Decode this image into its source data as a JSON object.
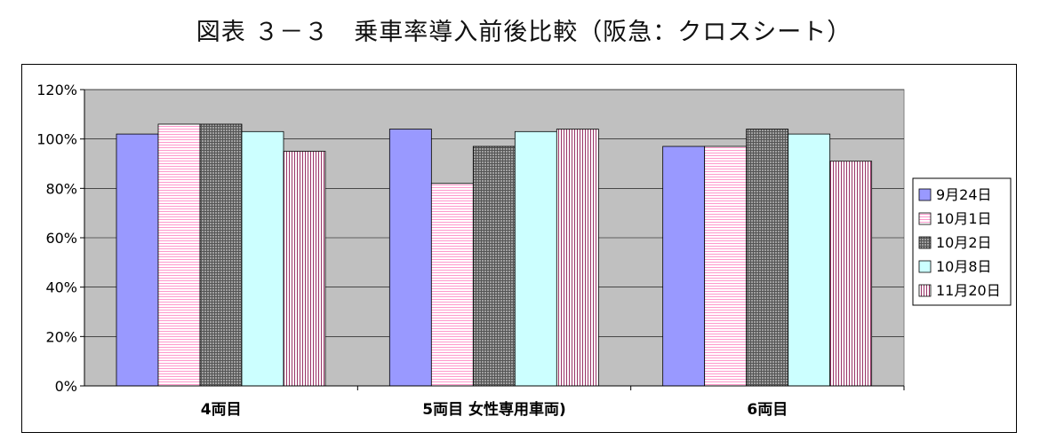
{
  "title": "図表 ３－３　乗車率導入前後比較（阪急：クロスシート）",
  "chart_data": {
    "type": "bar",
    "categories": [
      "4両目",
      "5両目 女性専用車両)",
      "6両目"
    ],
    "series": [
      {
        "name": "9月24日",
        "values": [
          102,
          104,
          97
        ],
        "color": "#9999ff",
        "pattern": "solid"
      },
      {
        "name": "10月1日",
        "values": [
          106,
          82,
          97
        ],
        "color": "#ff99cc",
        "pattern": "hlines"
      },
      {
        "name": "10月2日",
        "values": [
          106,
          97,
          104
        ],
        "color": "#777777",
        "pattern": "grid"
      },
      {
        "name": "10月8日",
        "values": [
          103,
          103,
          102
        ],
        "color": "#ccffff",
        "pattern": "solid"
      },
      {
        "name": "11月20日",
        "values": [
          95,
          104,
          91
        ],
        "color": "#993366",
        "pattern": "vlines"
      }
    ],
    "yticks": [
      "0%",
      "20%",
      "40%",
      "60%",
      "80%",
      "100%",
      "120%"
    ],
    "ylim": [
      0,
      120
    ],
    "grid": true,
    "plot_background": "#c0c0c0",
    "legend": "right"
  }
}
